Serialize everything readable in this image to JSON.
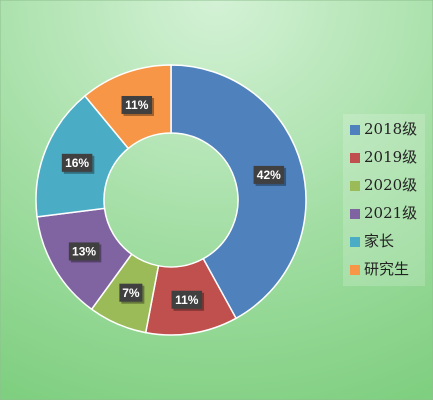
{
  "chart_data": {
    "type": "donut",
    "categories": [
      "2018级",
      "2019级",
      "2020级",
      "2021级",
      "家长",
      "研究生"
    ],
    "values": [
      42,
      11,
      7,
      13,
      16,
      11
    ],
    "value_labels": [
      "42%",
      "11%",
      "7%",
      "13%",
      "16%",
      "11%"
    ],
    "colors": [
      "#4f81bd",
      "#c0504d",
      "#9bbb59",
      "#8064a2",
      "#4bacc6",
      "#f79646"
    ],
    "legend": "right"
  }
}
